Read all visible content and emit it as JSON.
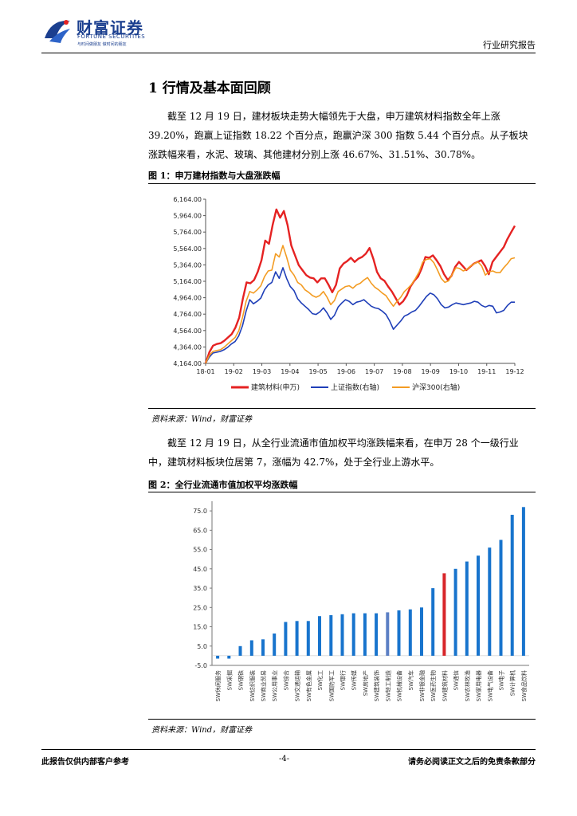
{
  "header": {
    "company_cn": "财富证券",
    "company_en": "FORTUNE SECURITIES",
    "company_sub": "与时间做朋友 做时间的朋友",
    "report_type": "行业研究报告"
  },
  "section": {
    "title": "1 行情及基本面回顾"
  },
  "paragraphs": [
    "截至 12 月 19 日，建材板块走势大幅领先于大盘，申万建筑材料指数全年上涨 39.20%，跑赢上证指数 18.22 个百分点，跑赢沪深 300 指数 5.44 个百分点。从子板块涨跌幅来看，水泥、玻璃、其他建材分别上涨 46.67%、31.51%、30.78%。",
    "截至 12 月 19 日，从全行业流通市值加权平均涨跌幅来看，在申万 28 个一级行业中，建筑材料板块位居第 7，涨幅为 42.7%，处于全行业上游水平。"
  ],
  "figures": [
    {
      "title": "图 1：申万建材指数与大盘涨跌幅",
      "source": "资料来源：Wind，财富证券"
    },
    {
      "title": "图 2：全行业流通市值加权平均涨跌幅",
      "source": "资料来源：Wind，财富证券"
    }
  ],
  "footer": {
    "left": "此报告仅供内部客户参考",
    "page": "-4-",
    "right": "请务必阅读正文之后的免责条款部分"
  },
  "chart_data": [
    {
      "type": "line",
      "x_ticks": [
        "18-01",
        "19-02",
        "19-03",
        "19-04",
        "19-05",
        "19-06",
        "19-07",
        "19-08",
        "19-09",
        "19-10",
        "19-11",
        "19-12"
      ],
      "y_ticks": [
        "4,164.00",
        "4,364.00",
        "4,564.00",
        "4,764.00",
        "4,964.00",
        "5,164.00",
        "5,364.00",
        "5,564.00",
        "5,764.00",
        "5,964.00",
        "6,164.00"
      ],
      "ylim": [
        4164,
        6164
      ],
      "series": [
        {
          "name": "建筑材料(申万)",
          "color": "#e52222",
          "values": [
            4164,
            4300,
            4380,
            4400,
            4410,
            4440,
            4480,
            4520,
            4600,
            4720,
            4950,
            5150,
            5140,
            5180,
            5280,
            5420,
            5660,
            5620,
            5850,
            6040,
            5940,
            6020,
            5850,
            5600,
            5480,
            5360,
            5300,
            5240,
            5210,
            5200,
            5150,
            5200,
            5200,
            5120,
            5030,
            5120,
            5320,
            5380,
            5410,
            5450,
            5400,
            5440,
            5460,
            5500,
            5570,
            5440,
            5280,
            5200,
            5170,
            5100,
            5040,
            4960,
            4880,
            4920,
            4990,
            5100,
            5170,
            5220,
            5320,
            5460,
            5450,
            5480,
            5420,
            5350,
            5250,
            5180,
            5230,
            5340,
            5400,
            5350,
            5300,
            5340,
            5380,
            5400,
            5420,
            5350,
            5250,
            5400,
            5460,
            5520,
            5580,
            5680,
            5760,
            5840
          ]
        },
        {
          "name": "上证指数(右轴)",
          "color": "#1f3fb8",
          "values": [
            4164,
            4240,
            4290,
            4300,
            4310,
            4330,
            4360,
            4400,
            4430,
            4500,
            4620,
            4800,
            4940,
            4890,
            4920,
            4960,
            5060,
            5120,
            5150,
            5280,
            5200,
            5330,
            5200,
            5100,
            5050,
            4950,
            4900,
            4860,
            4820,
            4770,
            4760,
            4790,
            4840,
            4780,
            4700,
            4750,
            4850,
            4900,
            4940,
            4920,
            4880,
            4910,
            4920,
            4940,
            4900,
            4860,
            4840,
            4830,
            4800,
            4760,
            4680,
            4580,
            4630,
            4680,
            4740,
            4760,
            4790,
            4810,
            4860,
            4920,
            4980,
            5020,
            5000,
            4950,
            4880,
            4840,
            4850,
            4880,
            4900,
            4890,
            4880,
            4890,
            4900,
            4920,
            4910,
            4870,
            4850,
            4870,
            4860,
            4780,
            4790,
            4810,
            4870,
            4910,
            4910
          ]
        },
        {
          "name": "沪深300(右轴)",
          "color": "#f39c23",
          "values": [
            4164,
            4260,
            4310,
            4320,
            4330,
            4360,
            4400,
            4440,
            4480,
            4560,
            4720,
            4920,
            5040,
            5020,
            5060,
            5110,
            5220,
            5290,
            5300,
            5500,
            5460,
            5600,
            5460,
            5300,
            5240,
            5150,
            5120,
            5060,
            5030,
            4990,
            4970,
            4990,
            5040,
            4970,
            4880,
            4930,
            5040,
            5070,
            5100,
            5110,
            5080,
            5120,
            5140,
            5180,
            5210,
            5140,
            5090,
            5060,
            5020,
            4990,
            4920,
            4860,
            4920,
            4970,
            5040,
            5080,
            5130,
            5200,
            5280,
            5400,
            5430,
            5440,
            5390,
            5300,
            5200,
            5150,
            5170,
            5250,
            5330,
            5320,
            5290,
            5310,
            5350,
            5380,
            5400,
            5350,
            5240,
            5280,
            5290,
            5270,
            5270,
            5330,
            5380,
            5440,
            5450
          ]
        }
      ]
    },
    {
      "type": "bar",
      "categories": [
        "SW休闲服务",
        "SW采掘",
        "SW钢铁",
        "SW纺织服装",
        "SW商业贸易",
        "SW公用事业",
        "SW综合",
        "SW交通运输",
        "SW有色金属",
        "SW化工",
        "SW国防军工",
        "SW银行",
        "SW传媒",
        "SW房地产",
        "SW建筑装饰",
        "SW轻工制造",
        "SW机械设备",
        "SW汽车",
        "SW非银金融",
        "SW医药生物",
        "SW建筑材料",
        "SW通信",
        "SW农林牧渔",
        "SW家用电器",
        "SW电气设备",
        "SW电子",
        "SW计算机",
        "SW食品饮料"
      ],
      "labels_as_printed": [
        "SW休闲服务",
        "SW采掘",
        "SW钢铁",
        "SW纺织服装",
        "SW商业贸易",
        "SW公用事业",
        "SW综合",
        "SW交通运输",
        "SW有色金属",
        "SW化工",
        "SW国防军工",
        "SW银行",
        "SW传媒",
        "SW房地产",
        "SW建筑装饰",
        "SW轻工制造",
        "SW机械设备",
        "SW汽车",
        "SW非银金融",
        "SW医药生物",
        "SW建筑材料",
        "SW通信",
        "SW农林牧渔",
        "SW家用电器",
        "SW电气设备",
        "SW电子",
        "SW计算机",
        "SW食品饮料"
      ],
      "values": [
        -1.5,
        -1.5,
        5,
        8,
        8.5,
        11.5,
        17.5,
        18,
        18,
        20.5,
        21,
        21.5,
        22,
        22,
        22,
        22.5,
        23.5,
        24,
        25,
        35,
        42.7,
        45,
        48.8,
        51.8,
        56,
        60,
        73,
        77
      ],
      "colors": {
        "default": "#1874cd",
        "highlight": "#d8262a",
        "alt": "#5b7fc4"
      },
      "highlight_index": 20,
      "alt_index": 15,
      "y_ticks": [
        "75.0",
        "65.0",
        "55.0",
        "45.0",
        "35.0",
        "25.0",
        "15.0",
        "5.0",
        "-5.0"
      ],
      "ylim": [
        -5,
        80
      ]
    }
  ]
}
